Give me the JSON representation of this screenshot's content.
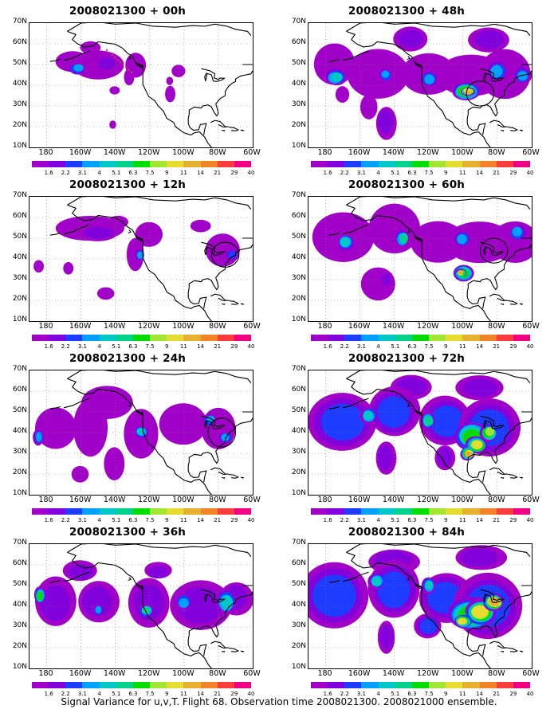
{
  "panels": [
    {
      "title": "2008021300 + 00h"
    },
    {
      "title": "2008021300 + 48h"
    },
    {
      "title": "2008021300 + 12h"
    },
    {
      "title": "2008021300 + 60h"
    },
    {
      "title": "2008021300 + 24h"
    },
    {
      "title": "2008021300 + 72h"
    },
    {
      "title": "2008021300 + 36h"
    },
    {
      "title": "2008021300 + 84h"
    }
  ],
  "lat_labels": [
    "70N",
    "60N",
    "50N",
    "40N",
    "30N",
    "20N",
    "10N"
  ],
  "lon_labels": [
    "180",
    "160W",
    "140W",
    "120W",
    "100W",
    "80W",
    "60W"
  ],
  "colorbar": {
    "labels": [
      "1.6",
      "2.2",
      "3.1",
      "4",
      "5.1",
      "6.3",
      "7.5",
      "9",
      "11",
      "14",
      "21",
      "29",
      "40"
    ],
    "colors": [
      "#a000c8",
      "#8200dc",
      "#1e3cff",
      "#00a0ff",
      "#00c8c8",
      "#00d28c",
      "#00dc00",
      "#a0e632",
      "#e6dc32",
      "#e6af2d",
      "#f08228",
      "#fa3c3c",
      "#f00082"
    ]
  },
  "caption": "Signal Variance for u,v,T. Flight 68. Observation time 2008021300. 2008021000 ensemble."
}
